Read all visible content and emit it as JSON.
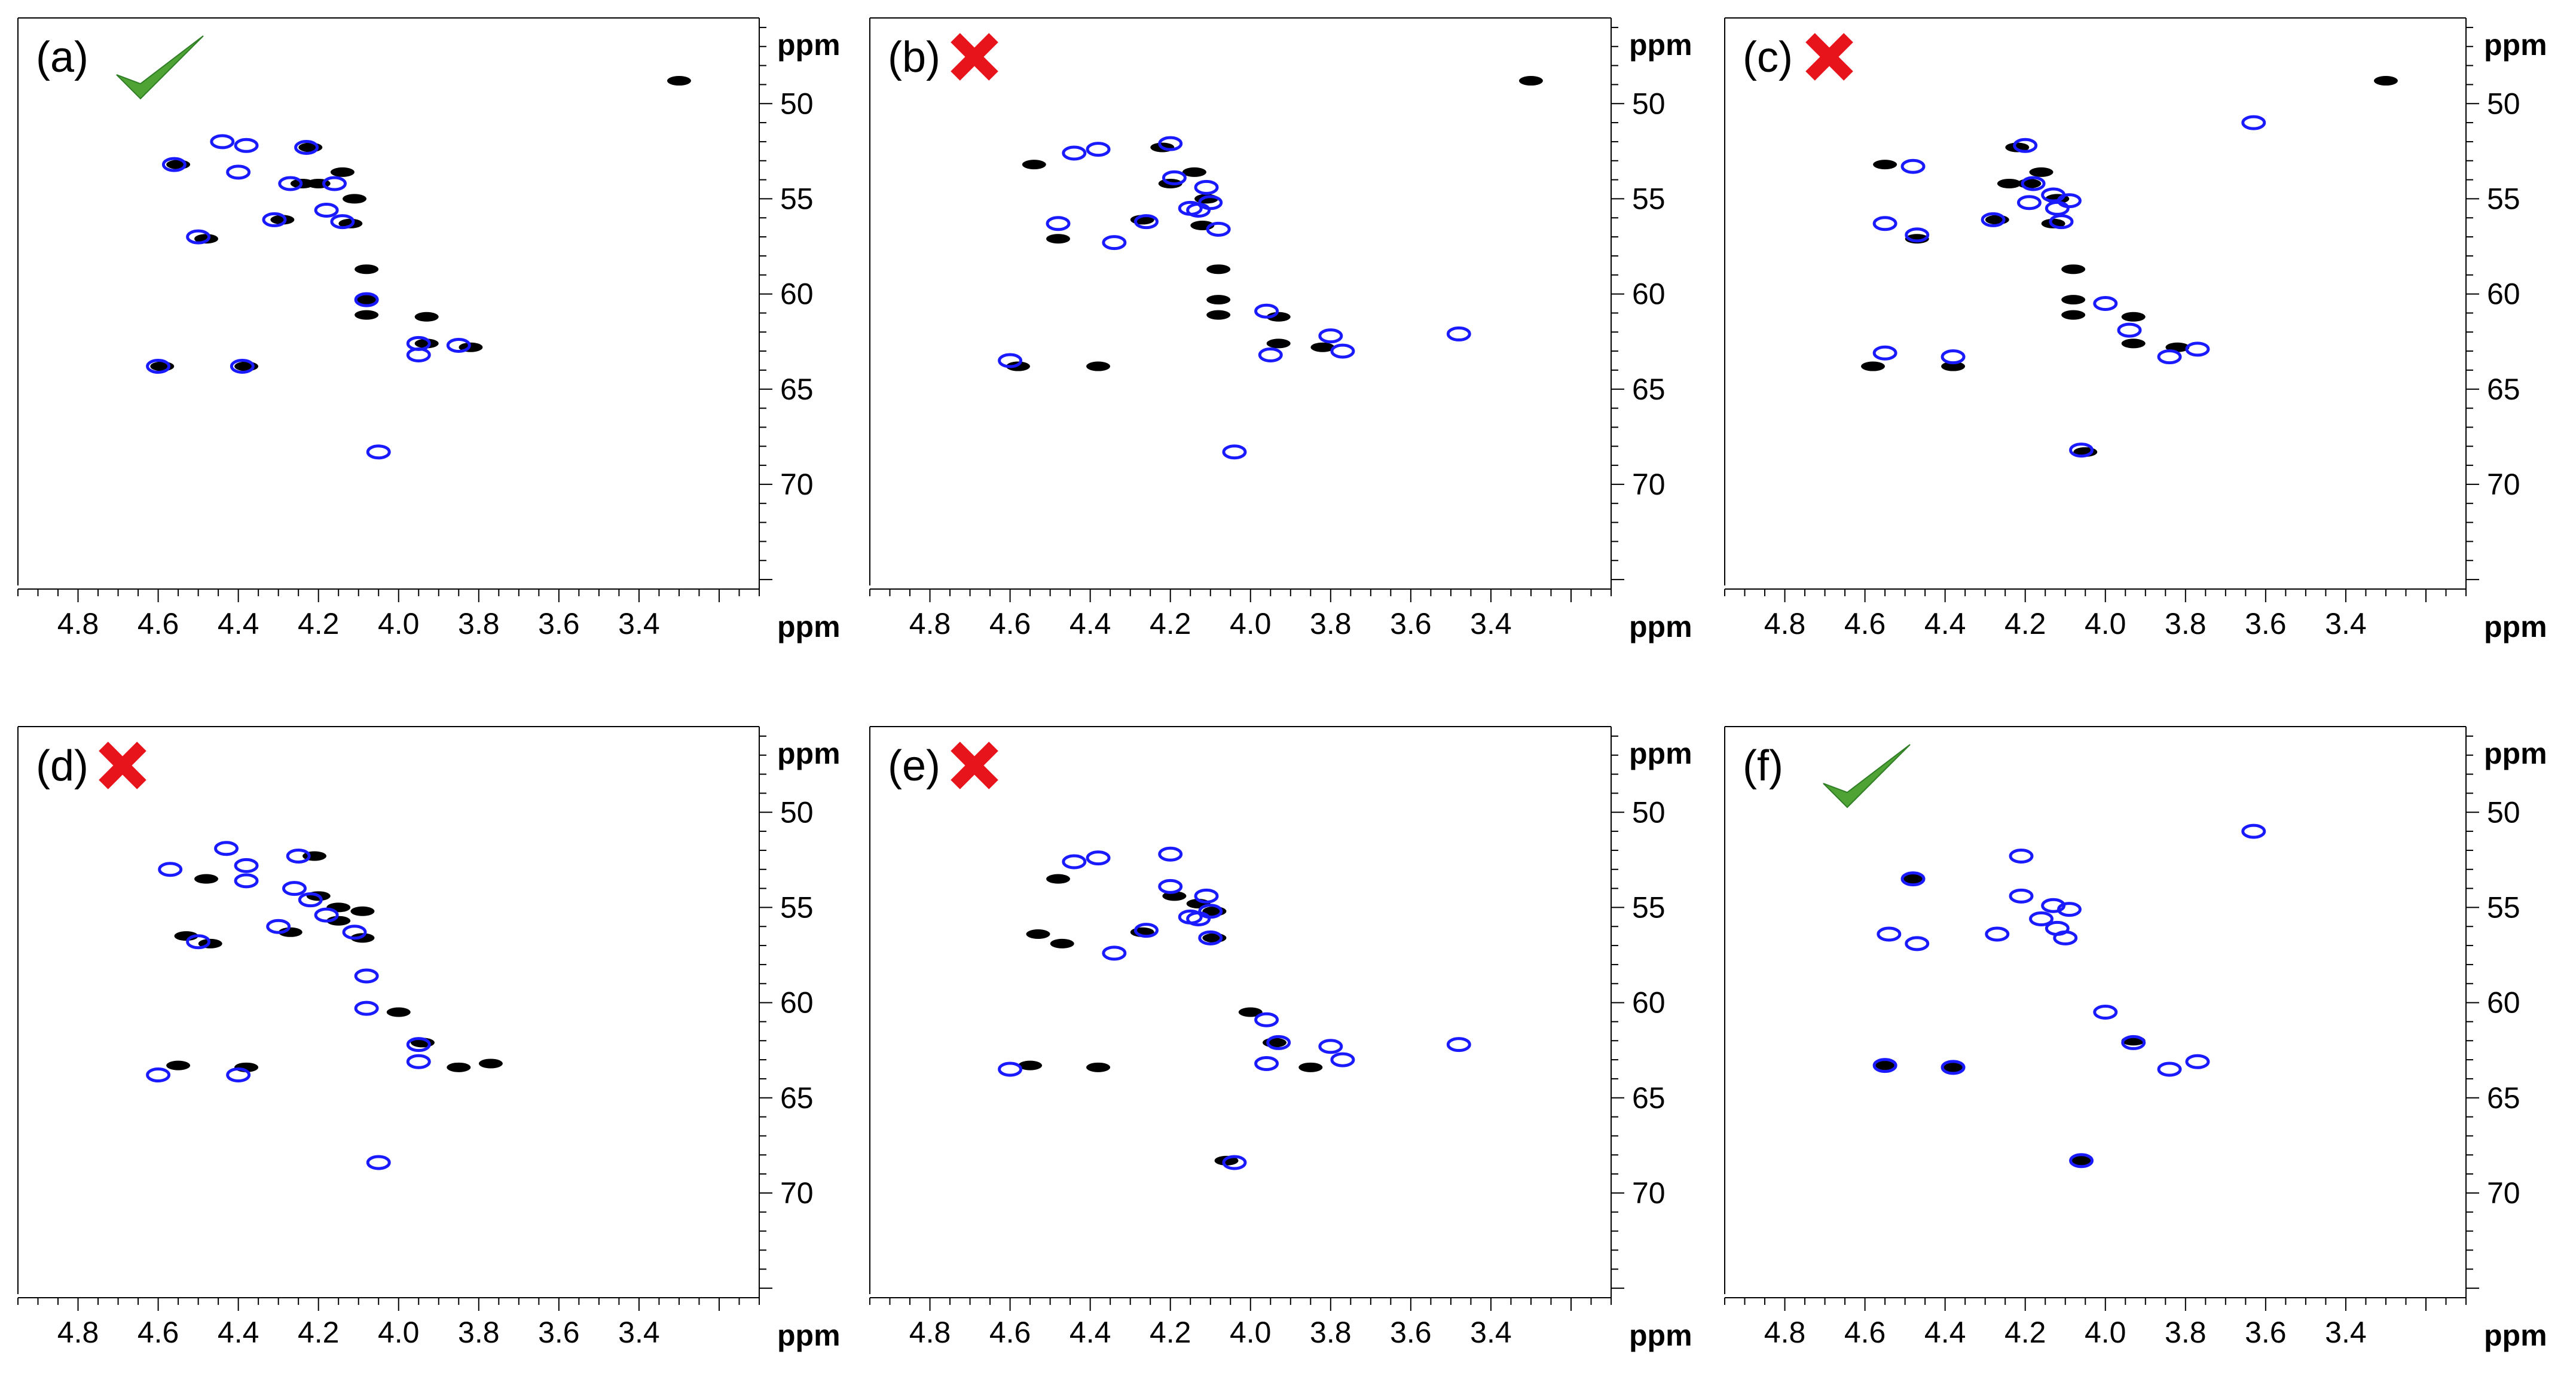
{
  "colors": {
    "reference": "#000000",
    "predicted": "#1a1aff",
    "check": "#4fa335",
    "cross": "#e8141b",
    "axis": "#000000"
  },
  "chart_data": [
    {
      "type": "scatter",
      "panel_label": "(a)",
      "mark": "check",
      "xlabel": "ppm",
      "ylabel": "ppm",
      "xlim": [
        4.95,
        3.1
      ],
      "ylim": [
        45.5,
        75.5
      ],
      "xticks": [
        "4.8",
        "4.6",
        "4.4",
        "4.2",
        "4.0",
        "3.8",
        "3.6",
        "3.4"
      ],
      "yticks": [
        "50",
        "55",
        "60",
        "65",
        "70"
      ],
      "series": [
        {
          "name": "reference",
          "points": [
            [
              4.55,
              53.2
            ],
            [
              4.48,
              57.1
            ],
            [
              4.22,
              52.3
            ],
            [
              4.24,
              54.2
            ],
            [
              4.14,
              53.6
            ],
            [
              4.2,
              54.2
            ],
            [
              4.11,
              55.0
            ],
            [
              4.29,
              56.1
            ],
            [
              4.12,
              56.3
            ],
            [
              4.08,
              58.7
            ],
            [
              4.08,
              60.3
            ],
            [
              4.08,
              61.1
            ],
            [
              3.93,
              61.2
            ],
            [
              3.93,
              62.6
            ],
            [
              3.82,
              62.8
            ],
            [
              4.59,
              63.8
            ],
            [
              4.38,
              63.8
            ],
            [
              3.3,
              48.8
            ]
          ]
        },
        {
          "name": "predicted",
          "points": [
            [
              4.44,
              52.0
            ],
            [
              4.38,
              52.2
            ],
            [
              4.23,
              52.3
            ],
            [
              4.56,
              53.2
            ],
            [
              4.27,
              54.2
            ],
            [
              4.18,
              55.6
            ],
            [
              4.16,
              54.2
            ],
            [
              4.31,
              56.1
            ],
            [
              4.14,
              56.2
            ],
            [
              4.5,
              57.0
            ],
            [
              4.08,
              60.3
            ],
            [
              3.95,
              62.6
            ],
            [
              3.95,
              63.2
            ],
            [
              3.85,
              62.7
            ],
            [
              4.6,
              63.8
            ],
            [
              4.39,
              63.8
            ],
            [
              4.05,
              68.3
            ],
            [
              4.4,
              53.6
            ]
          ]
        }
      ]
    },
    {
      "type": "scatter",
      "panel_label": "(b)",
      "mark": "cross",
      "xlabel": "ppm",
      "ylabel": "ppm",
      "xlim": [
        4.95,
        3.1
      ],
      "ylim": [
        45.5,
        75.5
      ],
      "xticks": [
        "4.8",
        "4.6",
        "4.4",
        "4.2",
        "4.0",
        "3.8",
        "3.6",
        "3.4"
      ],
      "yticks": [
        "50",
        "55",
        "60",
        "65",
        "70"
      ],
      "series": [
        {
          "name": "reference",
          "points": [
            [
              4.54,
              53.2
            ],
            [
              4.48,
              57.1
            ],
            [
              4.22,
              52.3
            ],
            [
              4.2,
              54.2
            ],
            [
              4.14,
              53.6
            ],
            [
              4.11,
              55.0
            ],
            [
              4.27,
              56.1
            ],
            [
              4.12,
              56.4
            ],
            [
              4.08,
              58.7
            ],
            [
              4.08,
              60.3
            ],
            [
              4.08,
              61.1
            ],
            [
              3.93,
              61.2
            ],
            [
              3.93,
              62.6
            ],
            [
              3.82,
              62.8
            ],
            [
              4.58,
              63.8
            ],
            [
              4.38,
              63.8
            ],
            [
              3.3,
              48.8
            ]
          ]
        },
        {
          "name": "predicted",
          "points": [
            [
              4.38,
              52.4
            ],
            [
              4.2,
              52.1
            ],
            [
              4.44,
              52.6
            ],
            [
              4.19,
              53.9
            ],
            [
              4.11,
              54.4
            ],
            [
              4.15,
              55.5
            ],
            [
              4.13,
              55.6
            ],
            [
              4.1,
              55.2
            ],
            [
              4.08,
              56.6
            ],
            [
              4.48,
              56.3
            ],
            [
              4.34,
              57.3
            ],
            [
              4.26,
              56.2
            ],
            [
              3.96,
              60.9
            ],
            [
              3.8,
              62.2
            ],
            [
              3.77,
              63.0
            ],
            [
              3.95,
              63.2
            ],
            [
              4.04,
              68.3
            ],
            [
              3.48,
              62.1
            ],
            [
              4.6,
              63.5
            ]
          ]
        }
      ]
    },
    {
      "type": "scatter",
      "panel_label": "(c)",
      "mark": "cross",
      "xlabel": "ppm",
      "ylabel": "ppm",
      "xlim": [
        4.95,
        3.1
      ],
      "ylim": [
        45.5,
        75.5
      ],
      "xticks": [
        "4.8",
        "4.6",
        "4.4",
        "4.2",
        "4.0",
        "3.8",
        "3.6",
        "3.4"
      ],
      "yticks": [
        "50",
        "55",
        "60",
        "65",
        "70"
      ],
      "series": [
        {
          "name": "reference",
          "points": [
            [
              4.55,
              53.2
            ],
            [
              4.47,
              57.1
            ],
            [
              4.22,
              52.3
            ],
            [
              4.24,
              54.2
            ],
            [
              4.16,
              53.6
            ],
            [
              4.19,
              54.2
            ],
            [
              4.12,
              55.0
            ],
            [
              4.27,
              56.1
            ],
            [
              4.13,
              56.3
            ],
            [
              4.08,
              58.7
            ],
            [
              4.08,
              60.3
            ],
            [
              4.08,
              61.1
            ],
            [
              3.93,
              61.2
            ],
            [
              3.93,
              62.6
            ],
            [
              3.82,
              62.8
            ],
            [
              4.58,
              63.8
            ],
            [
              4.38,
              63.8
            ],
            [
              3.3,
              48.8
            ],
            [
              4.05,
              68.3
            ]
          ]
        },
        {
          "name": "predicted",
          "points": [
            [
              4.2,
              52.2
            ],
            [
              4.48,
              53.3
            ],
            [
              4.18,
              54.2
            ],
            [
              4.13,
              54.8
            ],
            [
              4.09,
              55.1
            ],
            [
              4.12,
              55.5
            ],
            [
              4.55,
              56.3
            ],
            [
              4.47,
              56.9
            ],
            [
              4.28,
              56.1
            ],
            [
              4.11,
              56.2
            ],
            [
              4.0,
              60.5
            ],
            [
              3.94,
              61.9
            ],
            [
              3.84,
              63.3
            ],
            [
              3.77,
              62.9
            ],
            [
              4.38,
              63.3
            ],
            [
              4.55,
              63.1
            ],
            [
              4.06,
              68.2
            ],
            [
              3.63,
              51.0
            ],
            [
              4.19,
              55.2
            ]
          ]
        }
      ]
    },
    {
      "type": "scatter",
      "panel_label": "(d)",
      "mark": "cross",
      "xlabel": "ppm",
      "ylabel": "ppm",
      "xlim": [
        4.95,
        3.1
      ],
      "ylim": [
        45.5,
        75.5
      ],
      "xticks": [
        "4.8",
        "4.6",
        "4.4",
        "4.2",
        "4.0",
        "3.8",
        "3.6",
        "3.4"
      ],
      "yticks": [
        "50",
        "55",
        "60",
        "65",
        "70"
      ],
      "series": [
        {
          "name": "reference",
          "points": [
            [
              4.21,
              52.3
            ],
            [
              4.48,
              53.5
            ],
            [
              4.2,
              54.4
            ],
            [
              4.15,
              55.0
            ],
            [
              4.09,
              55.2
            ],
            [
              4.53,
              56.5
            ],
            [
              4.47,
              56.9
            ],
            [
              4.27,
              56.3
            ],
            [
              4.15,
              55.7
            ],
            [
              4.09,
              56.6
            ],
            [
              4.0,
              60.5
            ],
            [
              3.94,
              62.1
            ],
            [
              3.85,
              63.4
            ],
            [
              3.77,
              63.2
            ],
            [
              4.55,
              63.3
            ],
            [
              4.38,
              63.4
            ]
          ]
        },
        {
          "name": "predicted",
          "points": [
            [
              4.43,
              51.9
            ],
            [
              4.25,
              52.3
            ],
            [
              4.57,
              53.0
            ],
            [
              4.38,
              52.8
            ],
            [
              4.26,
              54.0
            ],
            [
              4.22,
              54.6
            ],
            [
              4.18,
              55.4
            ],
            [
              4.3,
              56.0
            ],
            [
              4.11,
              56.3
            ],
            [
              4.5,
              56.8
            ],
            [
              4.08,
              58.6
            ],
            [
              4.08,
              60.3
            ],
            [
              3.95,
              62.2
            ],
            [
              3.95,
              63.1
            ],
            [
              4.6,
              63.8
            ],
            [
              4.4,
              63.8
            ],
            [
              4.05,
              68.4
            ],
            [
              4.38,
              53.6
            ]
          ]
        }
      ]
    },
    {
      "type": "scatter",
      "panel_label": "(e)",
      "mark": "cross",
      "xlabel": "ppm",
      "ylabel": "ppm",
      "xlim": [
        4.95,
        3.1
      ],
      "ylim": [
        45.5,
        75.5
      ],
      "xticks": [
        "4.8",
        "4.6",
        "4.4",
        "4.2",
        "4.0",
        "3.8",
        "3.6",
        "3.4"
      ],
      "yticks": [
        "50",
        "55",
        "60",
        "65",
        "70"
      ],
      "series": [
        {
          "name": "reference",
          "points": [
            [
              4.48,
              53.5
            ],
            [
              4.19,
              54.4
            ],
            [
              4.13,
              54.8
            ],
            [
              4.09,
              55.2
            ],
            [
              4.53,
              56.4
            ],
            [
              4.47,
              56.9
            ],
            [
              4.27,
              56.3
            ],
            [
              4.09,
              56.6
            ],
            [
              4.0,
              60.5
            ],
            [
              3.94,
              62.1
            ],
            [
              3.85,
              63.4
            ],
            [
              4.55,
              63.3
            ],
            [
              4.38,
              63.4
            ],
            [
              4.06,
              68.3
            ]
          ]
        },
        {
          "name": "predicted",
          "points": [
            [
              4.38,
              52.4
            ],
            [
              4.2,
              52.2
            ],
            [
              4.44,
              52.6
            ],
            [
              4.2,
              53.9
            ],
            [
              4.11,
              54.4
            ],
            [
              4.15,
              55.5
            ],
            [
              4.13,
              55.6
            ],
            [
              4.1,
              55.2
            ],
            [
              4.1,
              56.6
            ],
            [
              4.34,
              57.4
            ],
            [
              4.26,
              56.2
            ],
            [
              3.96,
              60.9
            ],
            [
              3.8,
              62.3
            ],
            [
              3.77,
              63.0
            ],
            [
              3.96,
              63.2
            ],
            [
              3.93,
              62.1
            ],
            [
              4.04,
              68.4
            ],
            [
              3.48,
              62.2
            ],
            [
              4.6,
              63.5
            ]
          ]
        }
      ]
    },
    {
      "type": "scatter",
      "panel_label": "(f)",
      "mark": "check",
      "xlabel": "ppm",
      "ylabel": "ppm",
      "xlim": [
        4.95,
        3.1
      ],
      "ylim": [
        45.5,
        75.5
      ],
      "xticks": [
        "4.8",
        "4.6",
        "4.4",
        "4.2",
        "4.0",
        "3.8",
        "3.6",
        "3.4"
      ],
      "yticks": [
        "50",
        "55",
        "60",
        "65",
        "70"
      ],
      "series": [
        {
          "name": "reference",
          "points": [
            [
              4.48,
              53.5
            ],
            [
              4.55,
              63.3
            ],
            [
              4.38,
              63.4
            ],
            [
              3.93,
              62.0
            ],
            [
              4.06,
              68.3
            ]
          ]
        },
        {
          "name": "predicted",
          "points": [
            [
              4.21,
              52.3
            ],
            [
              4.48,
              53.5
            ],
            [
              4.21,
              54.4
            ],
            [
              4.13,
              54.9
            ],
            [
              4.09,
              55.1
            ],
            [
              4.16,
              55.6
            ],
            [
              4.12,
              56.1
            ],
            [
              4.1,
              56.6
            ],
            [
              4.54,
              56.4
            ],
            [
              4.47,
              56.9
            ],
            [
              4.27,
              56.4
            ],
            [
              4.0,
              60.5
            ],
            [
              3.93,
              62.1
            ],
            [
              3.84,
              63.5
            ],
            [
              3.77,
              63.1
            ],
            [
              4.55,
              63.3
            ],
            [
              4.38,
              63.4
            ],
            [
              4.06,
              68.3
            ],
            [
              3.63,
              51.0
            ]
          ]
        }
      ]
    }
  ]
}
